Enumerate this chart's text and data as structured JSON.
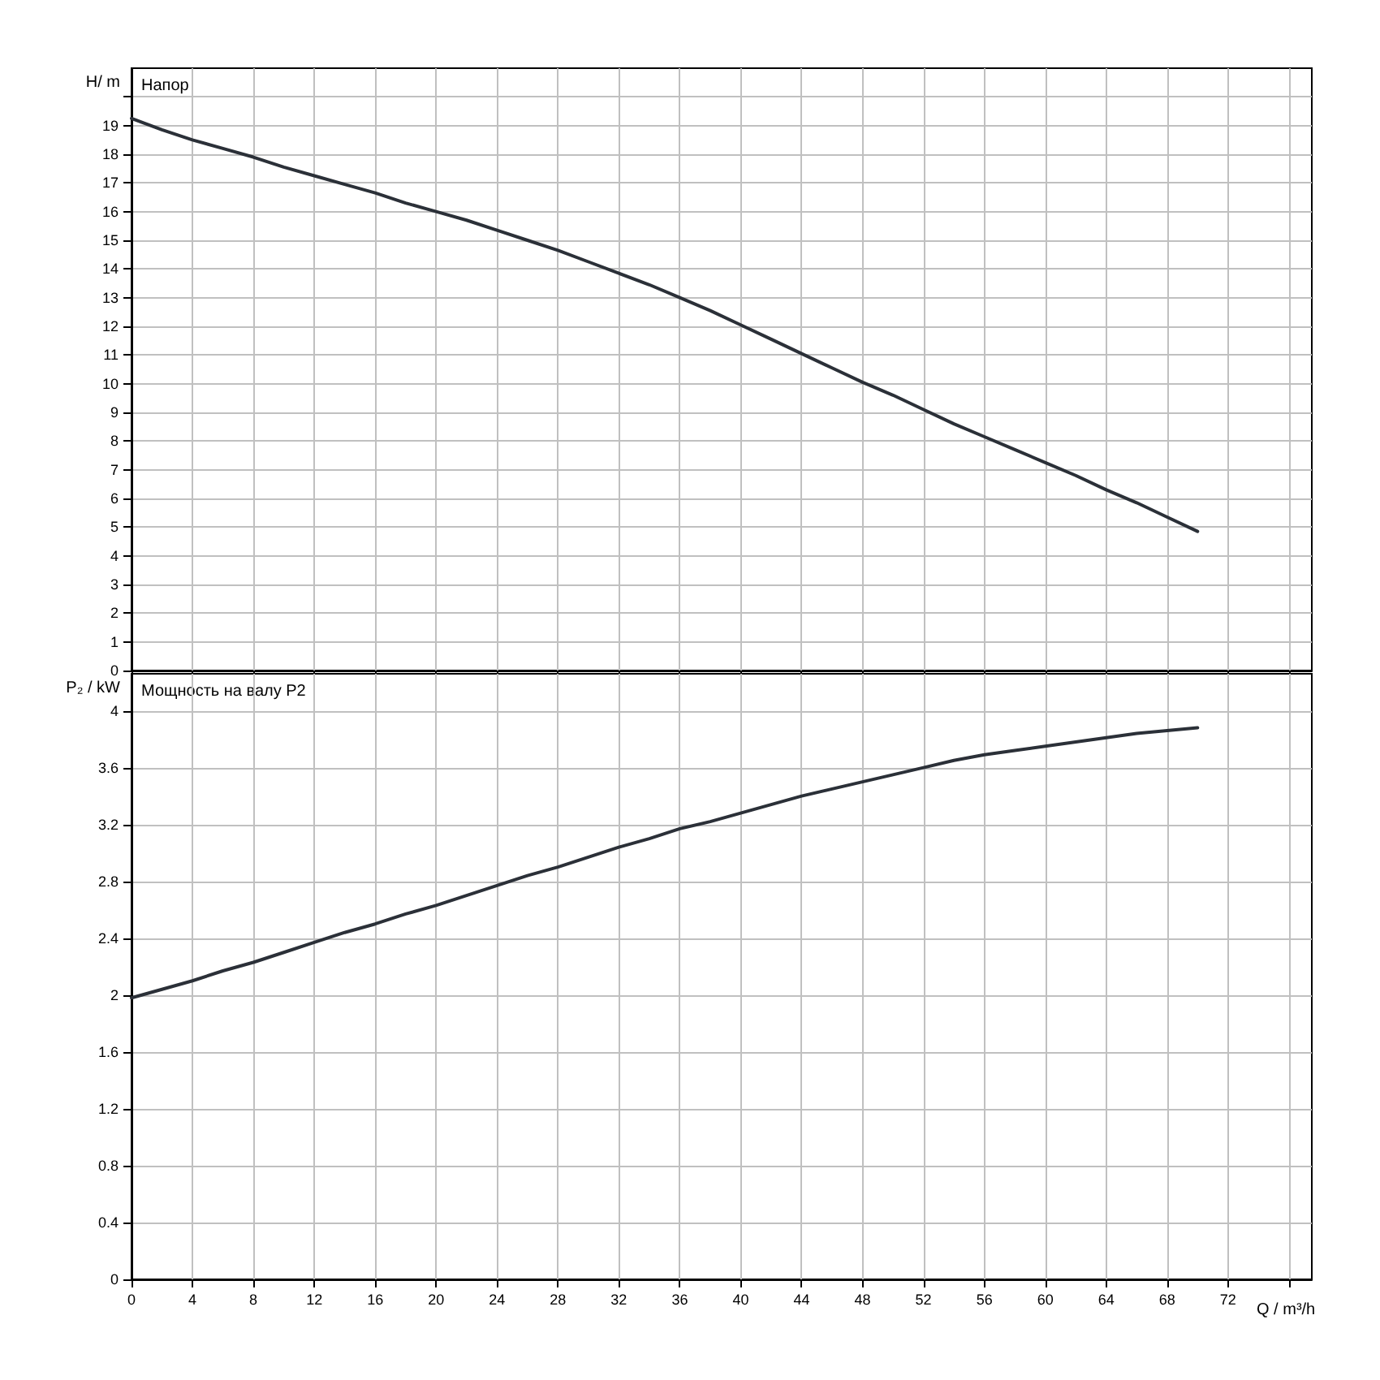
{
  "chart_data": [
    {
      "type": "line",
      "title": "Напор",
      "ylabel": "H/ m",
      "x": [
        0,
        2,
        4,
        6,
        8,
        10,
        12,
        14,
        16,
        18,
        20,
        22,
        24,
        26,
        28,
        30,
        32,
        34,
        36,
        38,
        40,
        42,
        44,
        46,
        48,
        50,
        52,
        54,
        56,
        58,
        60,
        62,
        64,
        66,
        68,
        70
      ],
      "series": [
        {
          "color": "#2b3038",
          "values": [
            19.25,
            18.85,
            18.5,
            18.2,
            17.9,
            17.55,
            17.25,
            16.95,
            16.65,
            16.3,
            16.0,
            15.7,
            15.35,
            15.0,
            14.65,
            14.25,
            13.85,
            13.45,
            13.0,
            12.55,
            12.05,
            11.55,
            11.05,
            10.55,
            10.05,
            9.6,
            9.1,
            8.6,
            8.15,
            7.7,
            7.25,
            6.8,
            6.3,
            5.85,
            5.35,
            4.85
          ]
        }
      ],
      "xlim": [
        0,
        77.5
      ],
      "xticks": [
        0,
        4,
        8,
        12,
        16,
        20,
        24,
        28,
        32,
        36,
        40,
        44,
        48,
        52,
        56,
        60,
        64,
        68,
        72,
        {
          "value": 76,
          "label": null
        }
      ],
      "ylim": [
        0,
        21
      ],
      "yticks": [
        0,
        1,
        2,
        3,
        4,
        5,
        6,
        7,
        8,
        9,
        10,
        11,
        12,
        13,
        14,
        15,
        16,
        17,
        18,
        19,
        {
          "value": 20,
          "label": null
        }
      ],
      "grid": true,
      "marker": "none",
      "line_style": "solid",
      "tick_labels": "y"
    },
    {
      "type": "line",
      "title": "Мощность на валу P2",
      "ylabel": "P₂ / kW",
      "xlabel": "Q / m³/h",
      "x": [
        0,
        2,
        4,
        6,
        8,
        10,
        12,
        14,
        16,
        18,
        20,
        22,
        24,
        26,
        28,
        30,
        32,
        34,
        36,
        38,
        40,
        42,
        44,
        46,
        48,
        50,
        52,
        54,
        56,
        58,
        60,
        62,
        64,
        66,
        68,
        70
      ],
      "series": [
        {
          "color": "#2b3038",
          "values": [
            1.98,
            2.04,
            2.1,
            2.17,
            2.23,
            2.3,
            2.37,
            2.44,
            2.5,
            2.57,
            2.63,
            2.7,
            2.77,
            2.84,
            2.9,
            2.97,
            3.04,
            3.1,
            3.17,
            3.22,
            3.28,
            3.34,
            3.4,
            3.45,
            3.5,
            3.55,
            3.6,
            3.65,
            3.69,
            3.72,
            3.75,
            3.78,
            3.81,
            3.84,
            3.86,
            3.88
          ]
        }
      ],
      "xlim": [
        0,
        77.5
      ],
      "xticks": [
        0,
        4,
        8,
        12,
        16,
        20,
        24,
        28,
        32,
        36,
        40,
        44,
        48,
        52,
        56,
        60,
        64,
        68,
        72,
        {
          "value": 76,
          "label": null
        }
      ],
      "ylim": [
        0,
        4.26
      ],
      "yticks": [
        0,
        0.4,
        0.8,
        1.2,
        1.6,
        2,
        2.4,
        2.8,
        3.2,
        3.6,
        4
      ],
      "grid": true,
      "marker": "none",
      "line_style": "solid"
    }
  ]
}
